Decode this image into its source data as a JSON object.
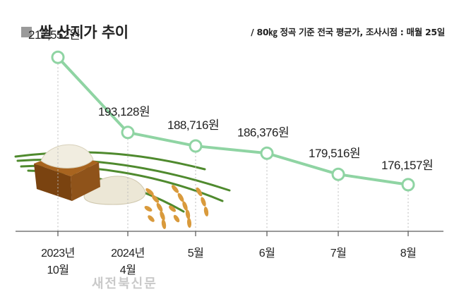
{
  "header": {
    "title": "쌀 산지가 추이",
    "subtitle": "/ 80㎏ 정곡 기준 전국 평균가, 조사시점 : 매월 25일"
  },
  "watermark": "새전북신문",
  "colors": {
    "line": "#8fd4a3",
    "marker_fill": "#ffffff",
    "axis": "#333333",
    "dotted": "#bbbbbb"
  },
  "chart_data": {
    "type": "line",
    "categories": [
      [
        "2023년",
        "10월"
      ],
      [
        "2024년",
        "4월"
      ],
      [
        "5월"
      ],
      [
        "6월"
      ],
      [
        "7월"
      ],
      [
        "8월"
      ]
    ],
    "values": [
      217552,
      193128,
      188716,
      186376,
      179516,
      176157
    ],
    "data_labels": [
      "217,552원",
      "193,128원",
      "188,716원",
      "186,376원",
      "179,516원",
      "176,157원"
    ],
    "title": "쌀 산지가 추이",
    "ylim": [
      161000,
      227000
    ],
    "grid": false,
    "legend": "none"
  }
}
